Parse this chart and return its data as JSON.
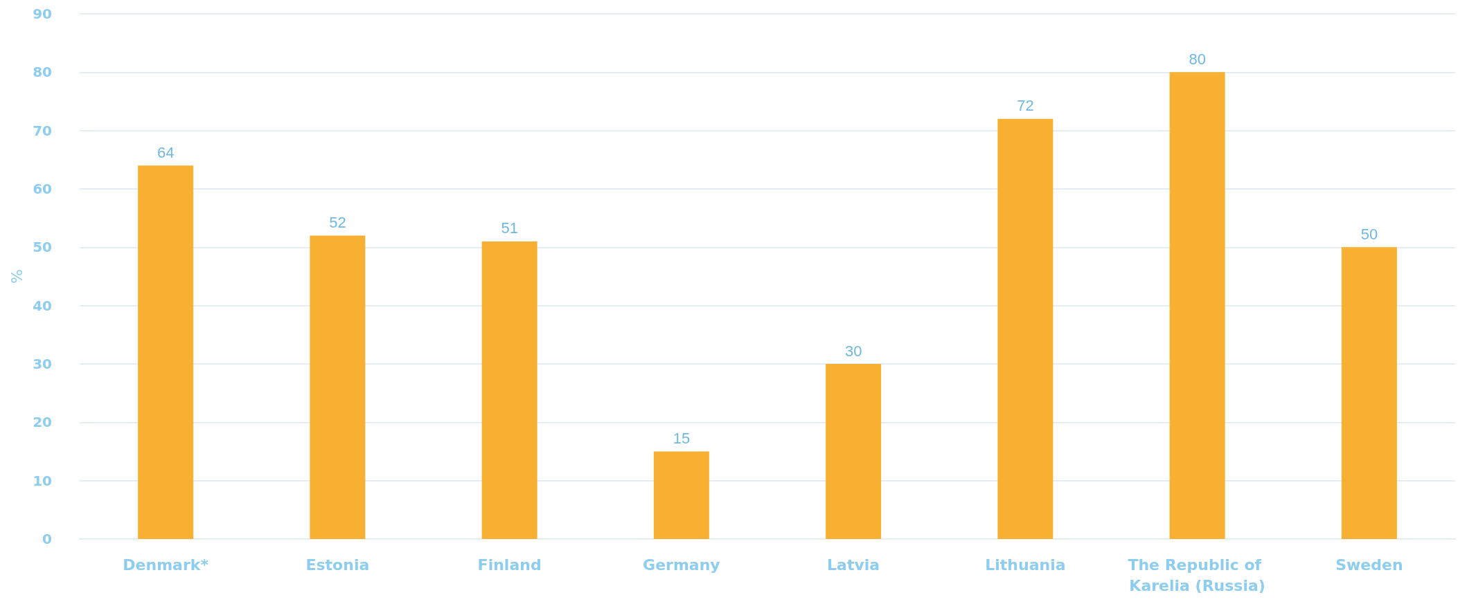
{
  "chart_data": {
    "type": "bar",
    "ylabel": "%",
    "categories": [
      "Denmark*",
      "Estonia",
      "Finland",
      "Germany",
      "Latvia",
      "Lithuania",
      "The Republic of Karelia (Russia)",
      "Sweden"
    ],
    "values": [
      64,
      52,
      51,
      15,
      30,
      72,
      80,
      50
    ],
    "color": "#f7b032",
    "ylim": [
      0,
      90
    ],
    "yticks": [
      0,
      10,
      20,
      30,
      40,
      50,
      60,
      70,
      80,
      90
    ],
    "grid": "y",
    "data_labels": true
  }
}
